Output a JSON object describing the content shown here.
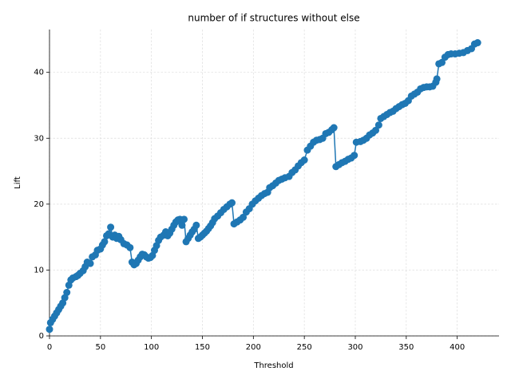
{
  "chart_data": {
    "type": "line",
    "title": "number of if structures without else",
    "x_label": "Threshold",
    "y_label": "Lift",
    "color": "#1f77b4",
    "markers": true,
    "grid": true,
    "xlim": [
      0,
      441
    ],
    "ylim": [
      0,
      46.5
    ],
    "xticks": [
      0,
      50,
      100,
      150,
      200,
      250,
      300,
      350,
      400
    ],
    "yticks": [
      0,
      10,
      20,
      30,
      40
    ],
    "x": [
      0,
      1,
      3,
      5,
      7,
      9,
      11,
      13,
      15,
      17,
      19,
      21,
      23,
      26,
      28,
      30,
      33,
      35,
      37,
      40,
      42,
      45,
      47,
      50,
      52,
      54,
      56,
      58,
      60,
      62,
      64,
      66,
      68,
      70,
      73,
      76,
      79,
      81,
      83,
      85,
      87,
      89,
      91,
      93,
      95,
      97,
      99,
      101,
      103,
      105,
      107,
      109,
      112,
      114,
      116,
      118,
      120,
      122,
      124,
      126,
      128,
      130,
      132,
      134,
      136,
      138,
      140,
      142,
      144,
      146,
      148,
      150,
      152,
      154,
      156,
      158,
      160,
      162,
      165,
      168,
      171,
      174,
      177,
      179,
      181,
      184,
      187,
      190,
      193,
      196,
      199,
      202,
      205,
      208,
      211,
      214,
      216,
      219,
      222,
      225,
      228,
      231,
      235,
      238,
      241,
      244,
      247,
      250,
      253,
      256,
      259,
      262,
      265,
      268,
      271,
      274,
      277,
      279,
      281,
      284,
      287,
      290,
      293,
      296,
      299,
      301,
      305,
      308,
      311,
      314,
      317,
      320,
      323,
      325,
      328,
      331,
      334,
      337,
      340,
      343,
      346,
      349,
      352,
      355,
      358,
      361,
      364,
      367,
      370,
      373,
      376,
      379,
      380,
      382,
      385,
      388,
      391,
      394,
      398,
      402,
      406,
      410,
      414,
      417,
      420
    ],
    "values": [
      1,
      2,
      2.5,
      3,
      3.5,
      4,
      4.5,
      5,
      5.8,
      6.6,
      7.7,
      8.5,
      8.8,
      9,
      9.2,
      9.5,
      9.9,
      10.5,
      11.2,
      11,
      12,
      12.3,
      13,
      13.2,
      13.8,
      14.3,
      15.2,
      15.5,
      16.5,
      15,
      15.3,
      14.8,
      15.1,
      14.6,
      14,
      13.8,
      13.4,
      11.2,
      10.8,
      11,
      11.5,
      12,
      12.4,
      12.3,
      12,
      11.8,
      11.9,
      12.2,
      13,
      13.7,
      14.5,
      15,
      15.3,
      15.8,
      15.2,
      15.6,
      16.2,
      16.8,
      17.3,
      17.6,
      17.7,
      16.8,
      17.7,
      14.3,
      14.8,
      15.3,
      15.8,
      16.2,
      16.8,
      14.8,
      15,
      15.3,
      15.6,
      15.9,
      16.3,
      16.7,
      17.2,
      17.8,
      18.2,
      18.7,
      19.2,
      19.6,
      20,
      20.2,
      17,
      17.3,
      17.6,
      18,
      18.8,
      19.3,
      20,
      20.5,
      20.9,
      21.3,
      21.6,
      21.8,
      22.5,
      22.8,
      23.2,
      23.6,
      23.8,
      24,
      24.2,
      24.8,
      25.2,
      25.8,
      26.3,
      26.7,
      28.2,
      28.8,
      29.4,
      29.7,
      29.8,
      30,
      30.7,
      30.9,
      31.3,
      31.6,
      25.7,
      26,
      26.3,
      26.5,
      26.8,
      27,
      27.4,
      29.4,
      29.5,
      29.7,
      30,
      30.5,
      30.8,
      31.2,
      32,
      33,
      33.3,
      33.6,
      33.9,
      34.1,
      34.5,
      34.8,
      35.1,
      35.3,
      35.7,
      36.4,
      36.7,
      37,
      37.5,
      37.7,
      37.8,
      37.8,
      37.9,
      38.5,
      39,
      41.3,
      41.5,
      42.3,
      42.7,
      42.8,
      42.8,
      42.9,
      43,
      43.3,
      43.6,
      44.3,
      44.5
    ]
  }
}
